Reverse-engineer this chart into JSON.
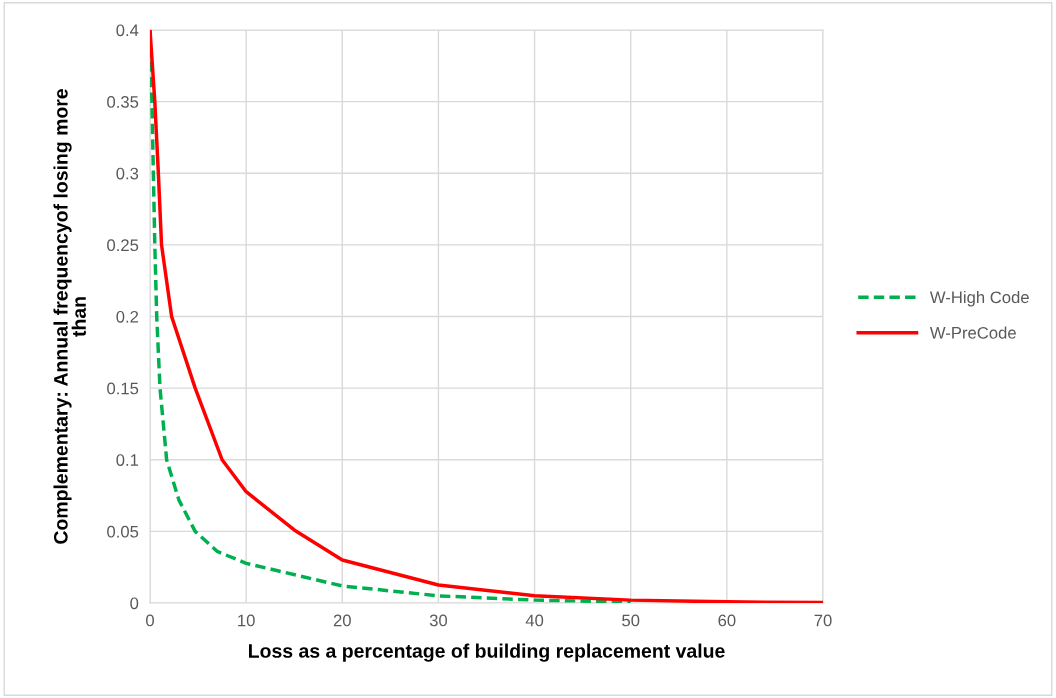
{
  "chart_data": {
    "type": "line",
    "xlabel": "Loss as a percentage of building replacement value",
    "ylabel": "Complementary: Annual frequencyof losing more\nthan",
    "series": [
      {
        "name": "W-High Code",
        "color": "#00b050",
        "line_style": "dashed",
        "x": [
          0,
          0.2,
          0.35,
          0.5,
          0.7,
          1.04,
          1.73,
          3,
          4.7,
          7,
          10,
          20,
          30,
          40,
          50
        ],
        "values": [
          0.4,
          0.35,
          0.3,
          0.25,
          0.2,
          0.15,
          0.1,
          0.072,
          0.05,
          0.036,
          0.0277,
          0.0119,
          0.005,
          0.002,
          0.0008
        ]
      },
      {
        "name": "W-PreCode",
        "color": "#ff0000",
        "line_style": "solid",
        "x": [
          0,
          0.5,
          0.87,
          1.2,
          2.25,
          4.7,
          7.5,
          10,
          15,
          20,
          30,
          40,
          50,
          60,
          70
        ],
        "values": [
          0.4,
          0.35,
          0.3,
          0.25,
          0.2,
          0.15,
          0.1,
          0.0777,
          0.051,
          0.03,
          0.0126,
          0.005,
          0.002,
          0.0008,
          0.0003
        ]
      }
    ],
    "xlim": [
      0,
      70
    ],
    "xticks": [
      0,
      10,
      20,
      30,
      40,
      50,
      60,
      70
    ],
    "ylim": [
      0,
      0.4
    ],
    "yticks": [
      0,
      0.05,
      0.1,
      0.15,
      0.2,
      0.25,
      0.3,
      0.35,
      0.4
    ],
    "grid": true,
    "legend": "right"
  }
}
